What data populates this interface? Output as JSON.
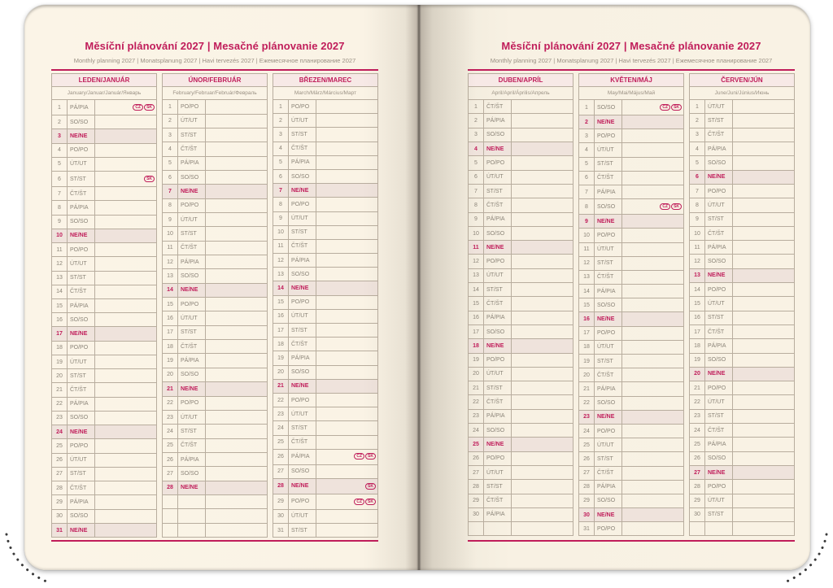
{
  "page_title": "Měsíční plánování 2027 | Mesačné plánovanie 2027",
  "page_subtitle": "Monthly planning 2027 | Monatsplanung 2027 | Havi tervezés 2027 | Ежемесячное планирование 2027",
  "colors": {
    "accent": "#c01d5a",
    "page_background": "#faf3e5",
    "month_header_background": "#f7e9e6",
    "sunday_row_background": "#efe3dc",
    "grid_line": "#b8ad9e",
    "weekday_text": "#8b8478"
  },
  "pages": [
    {
      "side": "left",
      "month_indexes": "0,1,2"
    },
    {
      "side": "right",
      "month_indexes": "3,4,5"
    }
  ],
  "months": [
    {
      "name": "LEDEN/JANUÁR",
      "languages": "January/Januar/Január/Январь",
      "days": [
        "PÁ/PIA",
        "SO/SO",
        "NE/NE",
        "PO/PO",
        "ÚT/UT",
        "ST/ST",
        "ČT/ŠT",
        "PÁ/PIA",
        "SO/SO",
        "NE/NE",
        "PO/PO",
        "ÚT/UT",
        "ST/ST",
        "ČT/ŠT",
        "PÁ/PIA",
        "SO/SO",
        "NE/NE",
        "PO/PO",
        "ÚT/UT",
        "ST/ST",
        "ČT/ŠT",
        "PÁ/PIA",
        "SO/SO",
        "NE/NE",
        "PO/PO",
        "ÚT/UT",
        "ST/ST",
        "ČT/ŠT",
        "PÁ/PIA",
        "SO/SO",
        "NE/NE"
      ],
      "holidays": {
        "1": [
          "CZ",
          "SK"
        ],
        "6": [
          "SK"
        ]
      },
      "empty_rows": 0
    },
    {
      "name": "ÚNOR/FEBRUÁR",
      "languages": "February/Februar/Február/Февраль",
      "days": [
        "PO/PO",
        "ÚT/UT",
        "ST/ST",
        "ČT/ŠT",
        "PÁ/PIA",
        "SO/SO",
        "NE/NE",
        "PO/PO",
        "ÚT/UT",
        "ST/ST",
        "ČT/ŠT",
        "PÁ/PIA",
        "SO/SO",
        "NE/NE",
        "PO/PO",
        "ÚT/UT",
        "ST/ST",
        "ČT/ŠT",
        "PÁ/PIA",
        "SO/SO",
        "NE/NE",
        "PO/PO",
        "ÚT/UT",
        "ST/ST",
        "ČT/ŠT",
        "PÁ/PIA",
        "SO/SO",
        "NE/NE"
      ],
      "holidays": {},
      "empty_rows": 3
    },
    {
      "name": "BŘEZEN/MAREC",
      "languages": "March/März/Március/Март",
      "days": [
        "PO/PO",
        "ÚT/UT",
        "ST/ST",
        "ČT/ŠT",
        "PÁ/PIA",
        "SO/SO",
        "NE/NE",
        "PO/PO",
        "ÚT/UT",
        "ST/ST",
        "ČT/ŠT",
        "PÁ/PIA",
        "SO/SO",
        "NE/NE",
        "PO/PO",
        "ÚT/UT",
        "ST/ST",
        "ČT/ŠT",
        "PÁ/PIA",
        "SO/SO",
        "NE/NE",
        "PO/PO",
        "ÚT/UT",
        "ST/ST",
        "ČT/ŠT",
        "PÁ/PIA",
        "SO/SO",
        "NE/NE",
        "PO/PO",
        "ÚT/UT",
        "ST/ST"
      ],
      "holidays": {
        "26": [
          "CZ",
          "SK"
        ],
        "28": [
          "SK"
        ],
        "29": [
          "CZ",
          "SK"
        ]
      },
      "empty_rows": 0
    },
    {
      "name": "DUBEN/APRÍL",
      "languages": "April/April/Április/Апрель",
      "days": [
        "ČT/ŠT",
        "PÁ/PIA",
        "SO/SO",
        "NE/NE",
        "PO/PO",
        "ÚT/UT",
        "ST/ST",
        "ČT/ŠT",
        "PÁ/PIA",
        "SO/SO",
        "NE/NE",
        "PO/PO",
        "ÚT/UT",
        "ST/ST",
        "ČT/ŠT",
        "PÁ/PIA",
        "SO/SO",
        "NE/NE",
        "PO/PO",
        "ÚT/UT",
        "ST/ST",
        "ČT/ŠT",
        "PÁ/PIA",
        "SO/SO",
        "NE/NE",
        "PO/PO",
        "ÚT/UT",
        "ST/ST",
        "ČT/ŠT",
        "PÁ/PIA"
      ],
      "holidays": {},
      "empty_rows": 1
    },
    {
      "name": "KVĚTEN/MÁJ",
      "languages": "May/Mai/Május/Май",
      "days": [
        "SO/SO",
        "NE/NE",
        "PO/PO",
        "ÚT/UT",
        "ST/ST",
        "ČT/ŠT",
        "PÁ/PIA",
        "SO/SO",
        "NE/NE",
        "PO/PO",
        "ÚT/UT",
        "ST/ST",
        "ČT/ŠT",
        "PÁ/PIA",
        "SO/SO",
        "NE/NE",
        "PO/PO",
        "ÚT/UT",
        "ST/ST",
        "ČT/ŠT",
        "PÁ/PIA",
        "SO/SO",
        "NE/NE",
        "PO/PO",
        "ÚT/UT",
        "ST/ST",
        "ČT/ŠT",
        "PÁ/PIA",
        "SO/SO",
        "NE/NE",
        "PO/PO"
      ],
      "holidays": {
        "1": [
          "CZ",
          "SK"
        ],
        "8": [
          "CZ",
          "SK"
        ]
      },
      "empty_rows": 0
    },
    {
      "name": "ČERVEN/JÚN",
      "languages": "June/Juni/Június/Июнь",
      "days": [
        "ÚT/UT",
        "ST/ST",
        "ČT/ŠT",
        "PÁ/PIA",
        "SO/SO",
        "NE/NE",
        "PO/PO",
        "ÚT/UT",
        "ST/ST",
        "ČT/ŠT",
        "PÁ/PIA",
        "SO/SO",
        "NE/NE",
        "PO/PO",
        "ÚT/UT",
        "ST/ST",
        "ČT/ŠT",
        "PÁ/PIA",
        "SO/SO",
        "NE/NE",
        "PO/PO",
        "ÚT/UT",
        "ST/ST",
        "ČT/ŠT",
        "PÁ/PIA",
        "SO/SO",
        "NE/NE",
        "PO/PO",
        "ÚT/UT",
        "ST/ST"
      ],
      "holidays": {},
      "empty_rows": 1
    }
  ]
}
